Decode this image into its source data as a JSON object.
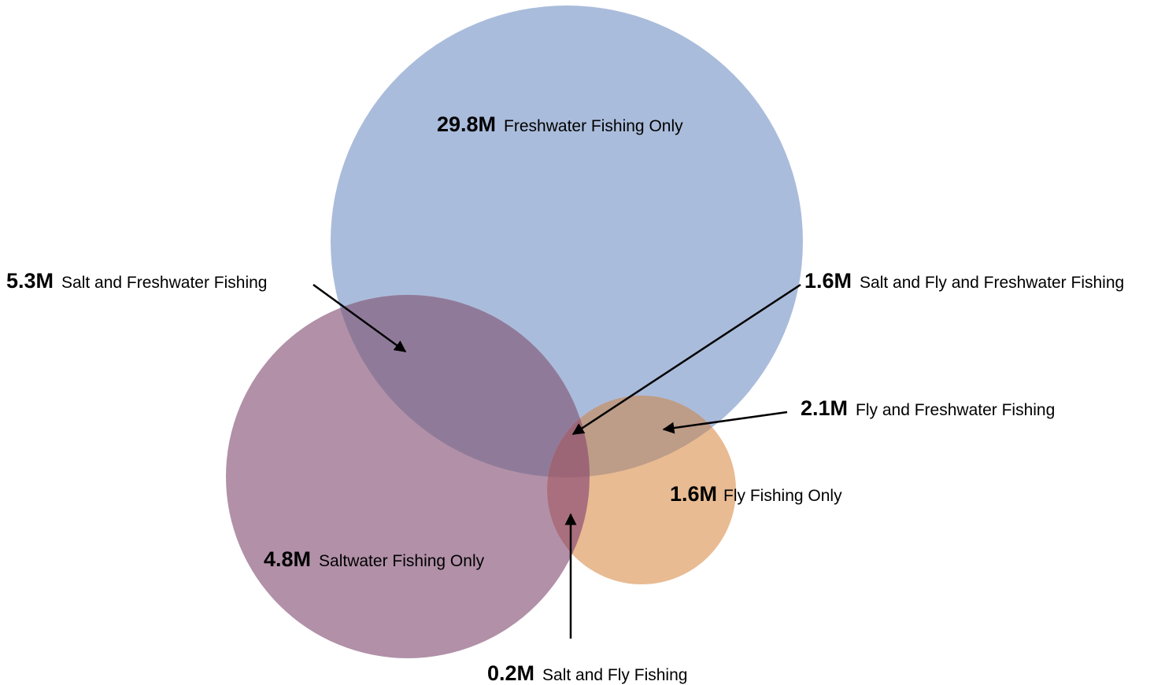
{
  "regions": [
    {
      "value": "29.8M",
      "name": "Freshwater Fishing Only"
    },
    {
      "value": "5.3M",
      "name": "Salt and Freshwater Fishing"
    },
    {
      "value": "1.6M",
      "name": "Salt and Fly and Freshwater Fishing"
    },
    {
      "value": "2.1M",
      "name": "Fly and Freshwater Fishing"
    },
    {
      "value": "1.6M",
      "name": "Fly Fishing Only"
    },
    {
      "value": "4.8M",
      "name": "Saltwater Fishing Only"
    },
    {
      "value": "0.2M",
      "name": "Salt and Fly Fishing"
    }
  ]
}
